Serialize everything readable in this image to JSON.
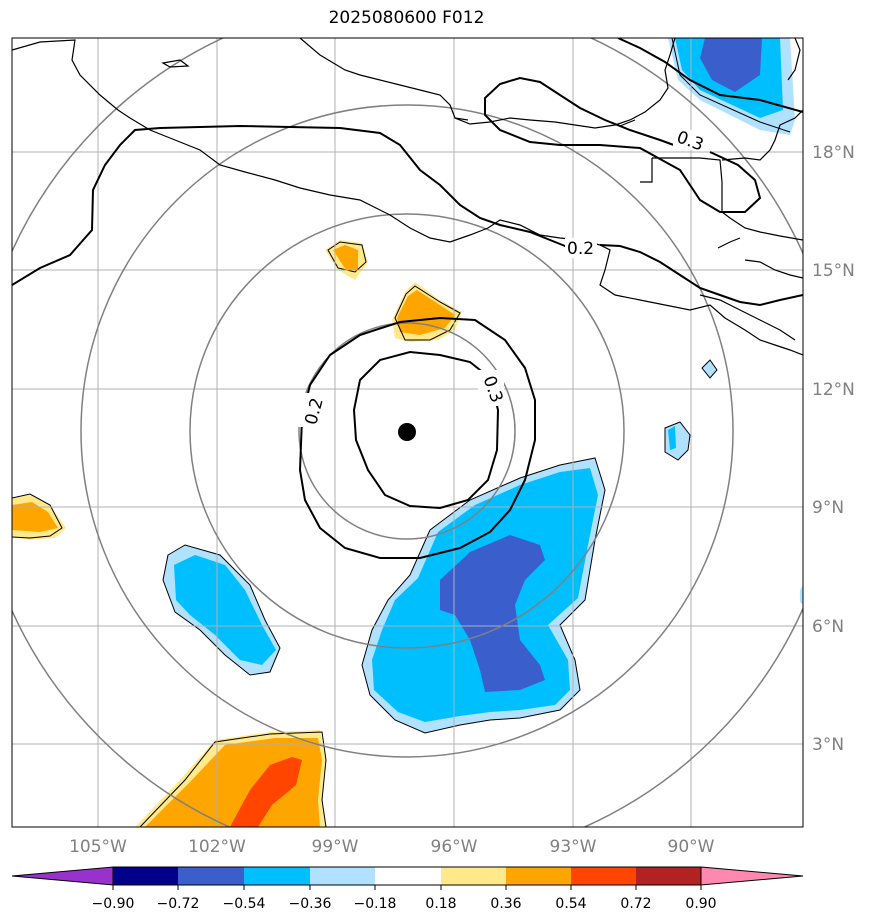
{
  "title": "2025080600 F012",
  "map": {
    "lon_labels": [
      "105°W",
      "102°W",
      "99°W",
      "96°W",
      "93°W",
      "90°W"
    ],
    "lat_labels": [
      "18°N",
      "15°N",
      "12°N",
      "9°N",
      "6°N",
      "3°N"
    ],
    "contour_labels": [
      "0.3",
      "0.2",
      "0.2",
      "0.3"
    ],
    "center_marker": "storm-center-dot"
  },
  "colorbar": {
    "tick_labels": [
      "−0.90",
      "−0.72",
      "−0.54",
      "−0.36",
      "−0.18",
      "0.18",
      "0.36",
      "0.54",
      "0.72",
      "0.90"
    ],
    "colors": [
      "#9932cc",
      "#00008b",
      "#3a5fcd",
      "#00bfff",
      "#b0e2ff",
      "#ffffff",
      "#ffe98a",
      "#ffa500",
      "#ff4500",
      "#b22222",
      "#ff88b0"
    ]
  }
}
